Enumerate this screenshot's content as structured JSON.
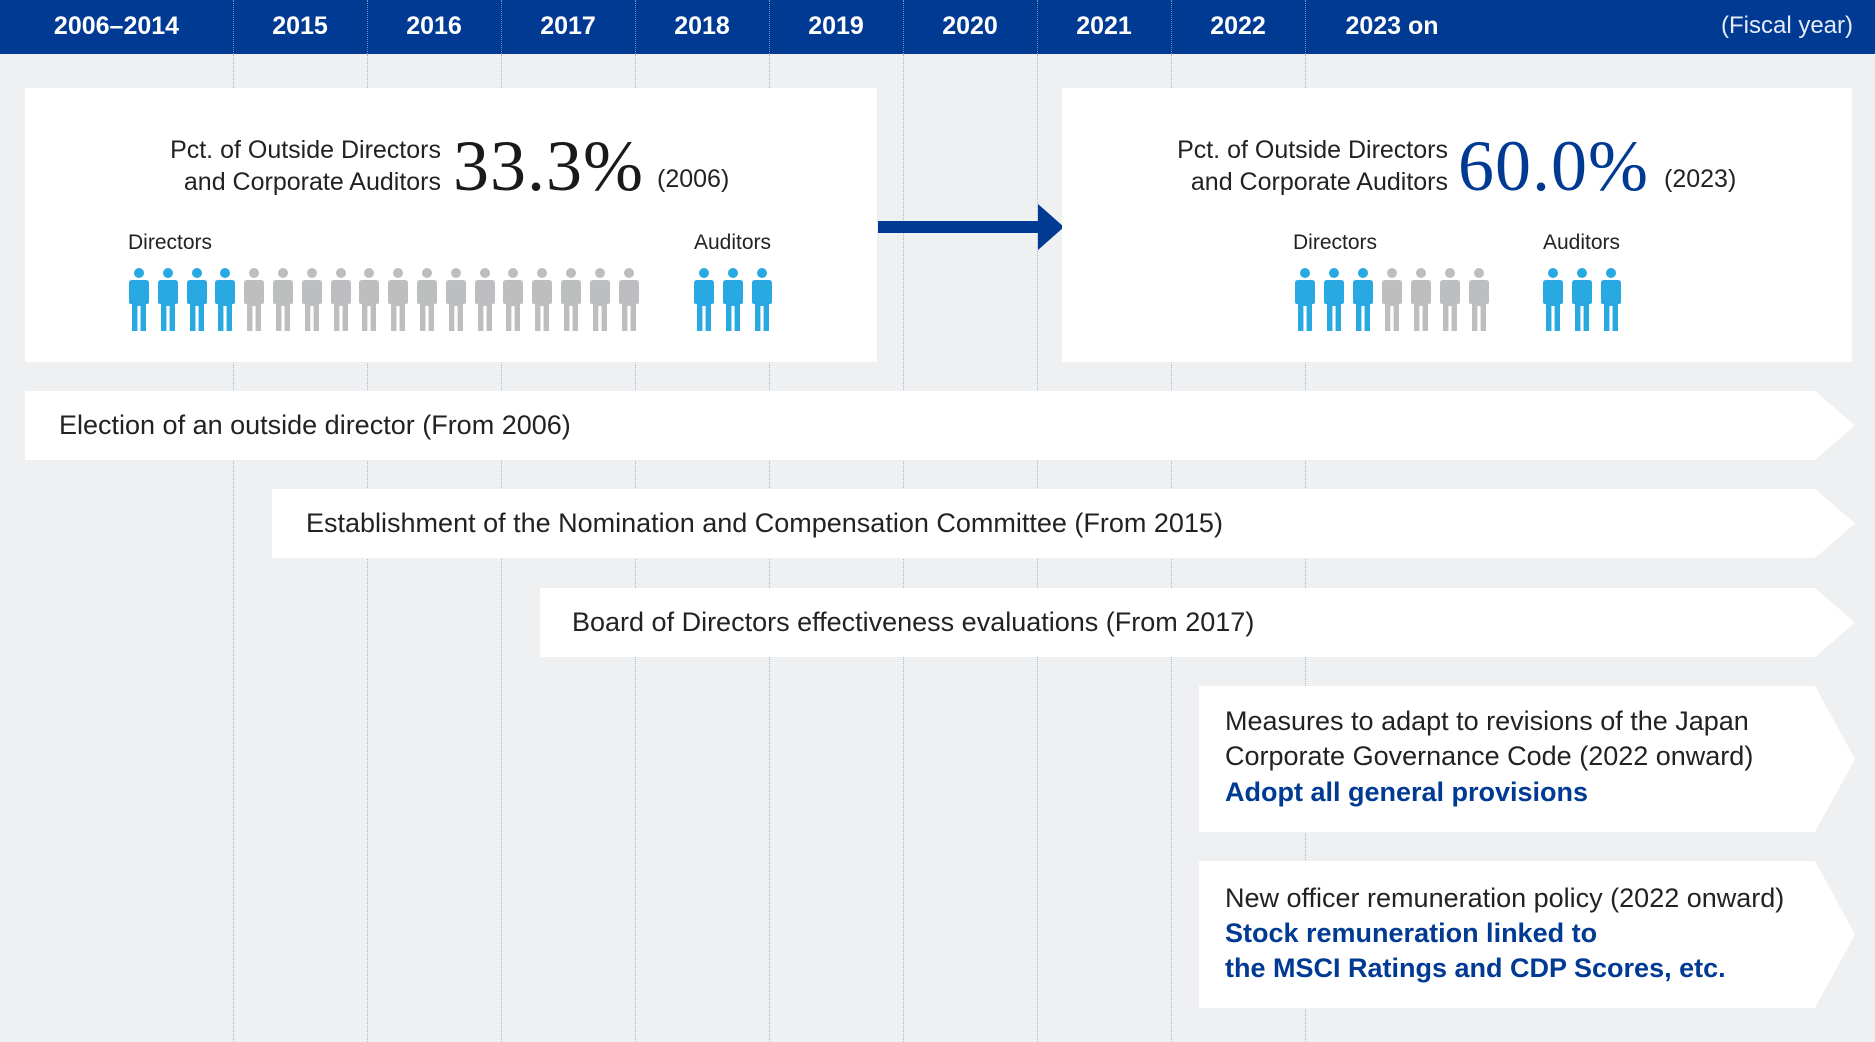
{
  "header": {
    "years": [
      "2006–2014",
      "2015",
      "2016",
      "2017",
      "2018",
      "2019",
      "2020",
      "2021",
      "2022",
      "2023 on"
    ],
    "unit_label": "(Fiscal year)"
  },
  "panels": {
    "left": {
      "label_line1": "Pct. of Outside Directors",
      "label_line2": "and Corporate Auditors",
      "value": "33.3%",
      "year": "(2006)",
      "directors_label": "Directors",
      "auditors_label": "Auditors",
      "directors_total": 18,
      "directors_outside": 4,
      "auditors_total": 3,
      "auditors_outside": 3,
      "value_color": "#1a1a1a"
    },
    "right": {
      "label_line1": "Pct. of Outside Directors",
      "label_line2": "and Corporate Auditors",
      "value": "60.0%",
      "year": "(2023)",
      "directors_label": "Directors",
      "auditors_label": "Auditors",
      "directors_total": 7,
      "directors_outside": 3,
      "auditors_total": 3,
      "auditors_outside": 3,
      "value_color": "#003a93"
    }
  },
  "bands": [
    {
      "text": "Election of an outside director (From 2006)"
    },
    {
      "text": "Establishment of the Nomination and Compensation Committee (From 2015)"
    },
    {
      "text": "Board of Directors effectiveness evaluations (From 2017)"
    },
    {
      "line1": "Measures to adapt to revisions of the Japan",
      "line2": "Corporate Governance Code (2022 onward)",
      "bold1": "Adopt all general provisions"
    },
    {
      "line1": "New officer remuneration policy (2022 onward)",
      "bold1": "Stock remuneration linked to",
      "bold2": "the MSCI Ratings and CDP Scores, etc."
    }
  ],
  "colors": {
    "header_bg": "#003a93",
    "outside_person": "#29a9e1",
    "inside_person": "#bcbec0",
    "arrow": "#003a93",
    "bold_text": "#003a93"
  },
  "icons": {
    "person": "person-icon",
    "arrow": "arrow-right-icon"
  }
}
